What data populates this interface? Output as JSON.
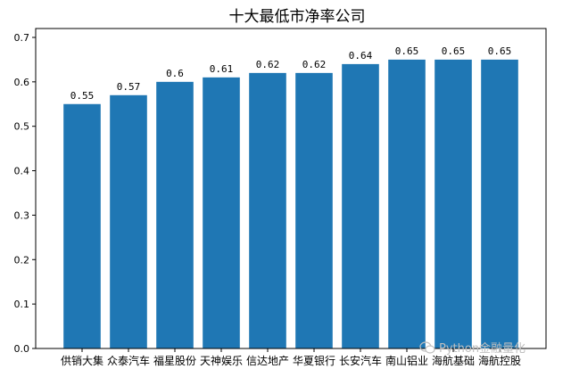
{
  "chart_data": {
    "type": "bar",
    "title": "十大最低市净率公司",
    "xlabel": "",
    "ylabel": "",
    "categories": [
      "供销大集",
      "众泰汽车",
      "福星股份",
      "天神娱乐",
      "信达地产",
      "华夏银行",
      "长安汽车",
      "南山铝业",
      "海航基础",
      "海航控股"
    ],
    "values": [
      0.55,
      0.57,
      0.6,
      0.61,
      0.62,
      0.62,
      0.64,
      0.65,
      0.65,
      0.65
    ],
    "data_labels": [
      "0.55",
      "0.57",
      "0.6",
      "0.61",
      "0.62",
      "0.62",
      "0.64",
      "0.65",
      "0.65",
      "0.65"
    ],
    "ylim": [
      0,
      0.72
    ],
    "yticks": [
      0.0,
      0.1,
      0.2,
      0.3,
      0.4,
      0.5,
      0.6,
      0.7
    ],
    "ytick_labels": [
      "0.0",
      "0.1",
      "0.2",
      "0.3",
      "0.4",
      "0.5",
      "0.6",
      "0.7"
    ],
    "grid": false,
    "bar_color": "#1f77b4"
  },
  "watermark": {
    "text": "Python金融量化",
    "icon": "wechat-icon"
  }
}
